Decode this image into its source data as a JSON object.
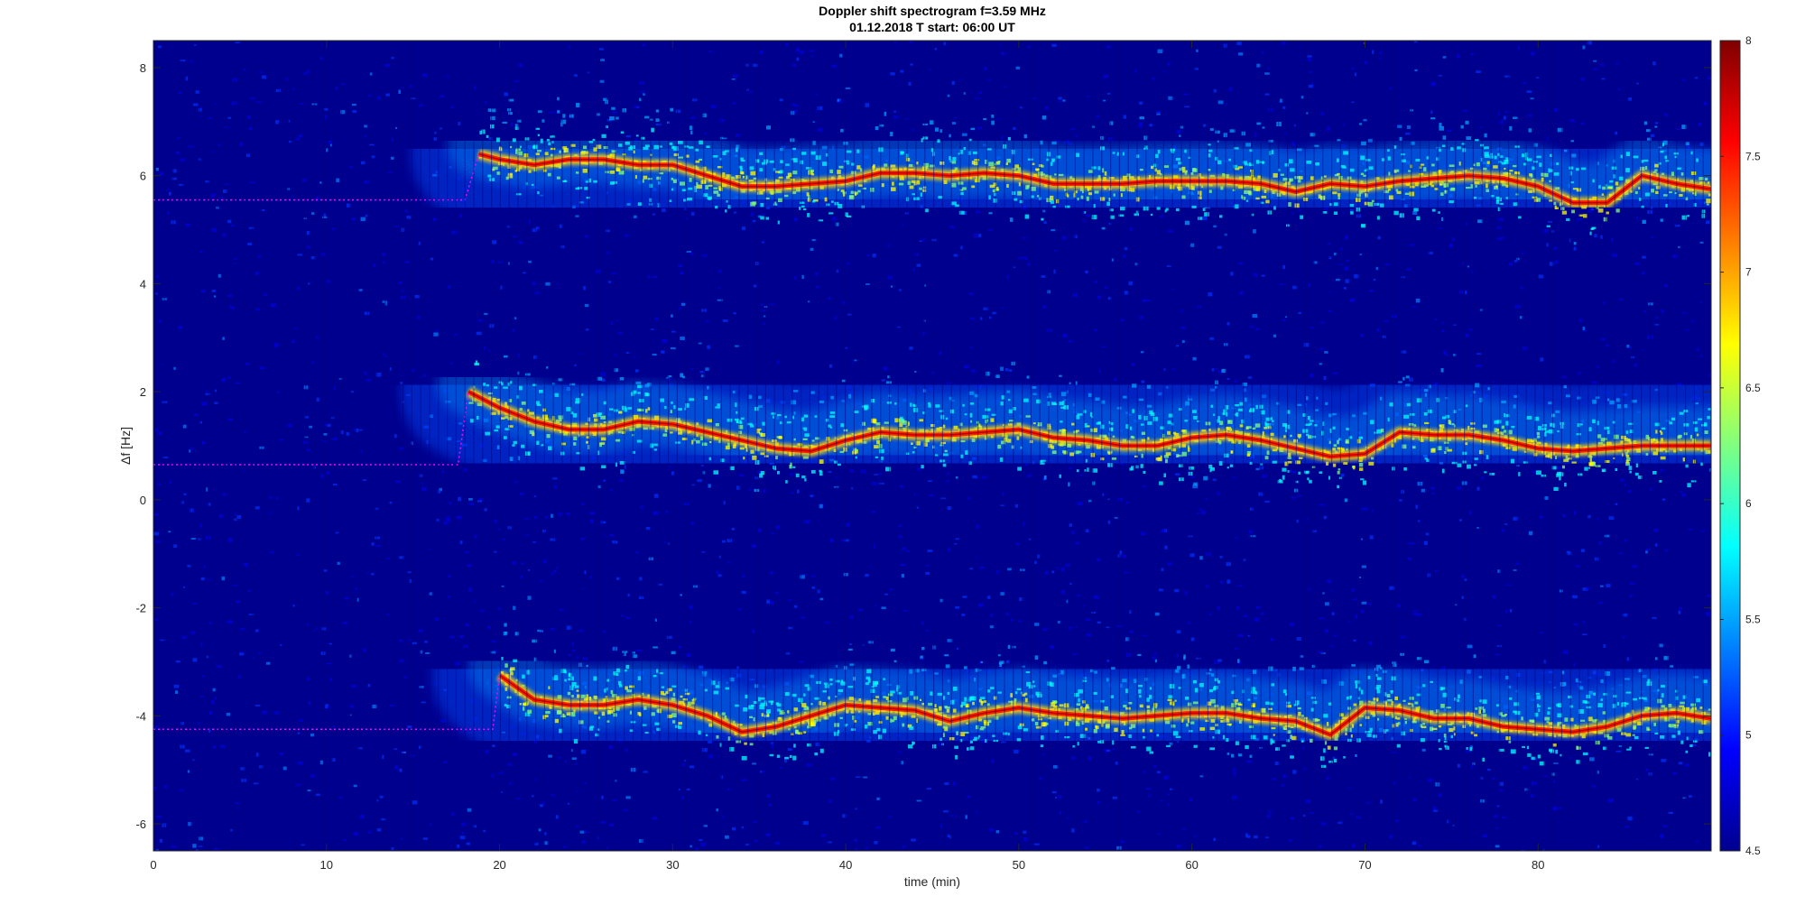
{
  "chart_data": {
    "type": "heatmap",
    "title": "Doppler shift spectrogram f=3.59 MHz",
    "subtitle": "01.12.2018    T start: 06:00 UT",
    "xlabel": "time (min)",
    "ylabel": "Δf [Hz]",
    "xlim": [
      0,
      90
    ],
    "ylim": [
      -6.5,
      8.5
    ],
    "xticks": [
      0,
      10,
      20,
      30,
      40,
      50,
      60,
      70,
      80
    ],
    "yticks": [
      -6,
      -4,
      -2,
      0,
      2,
      4,
      6,
      8
    ],
    "colorbar": {
      "colormap": "jet",
      "range": [
        4.5,
        8
      ],
      "ticks": [
        4.5,
        5,
        5.5,
        6,
        6.5,
        7,
        7.5,
        8
      ]
    },
    "background_color": "#00008f",
    "traces": [
      {
        "ridge_x": [
          18.8,
          20,
          22,
          24,
          26,
          28,
          30,
          32,
          34,
          36,
          38,
          40,
          42,
          44,
          46,
          48,
          50,
          52,
          54,
          56,
          58,
          60,
          62,
          64,
          66,
          68,
          70,
          72,
          74,
          76,
          78,
          80,
          82,
          84,
          86,
          88,
          90
        ],
        "ridge_y": [
          6.4,
          6.3,
          6.2,
          6.3,
          6.3,
          6.2,
          6.2,
          6.0,
          5.8,
          5.8,
          5.85,
          5.9,
          6.05,
          6.05,
          6.0,
          6.05,
          6.0,
          5.85,
          5.85,
          5.85,
          5.9,
          5.9,
          5.9,
          5.85,
          5.7,
          5.85,
          5.8,
          5.9,
          5.95,
          6.0,
          5.95,
          5.8,
          5.5,
          5.5,
          6.0,
          5.85,
          5.75
        ],
        "baseline_y": 5.55,
        "baseline_end": 18.0
      },
      {
        "ridge_x": [
          18.2,
          20,
          22,
          24,
          26,
          28,
          30,
          32,
          34,
          36,
          38,
          40,
          42,
          44,
          46,
          48,
          50,
          52,
          54,
          56,
          58,
          60,
          62,
          64,
          66,
          68,
          70,
          72,
          74,
          76,
          78,
          80,
          82,
          84,
          86,
          88,
          90
        ],
        "ridge_y": [
          2.0,
          1.7,
          1.45,
          1.3,
          1.3,
          1.45,
          1.4,
          1.25,
          1.1,
          0.95,
          0.9,
          1.1,
          1.25,
          1.2,
          1.2,
          1.25,
          1.3,
          1.15,
          1.1,
          1.0,
          1.0,
          1.15,
          1.2,
          1.1,
          0.95,
          0.8,
          0.85,
          1.25,
          1.2,
          1.2,
          1.1,
          0.95,
          0.9,
          0.95,
          1.0,
          1.0,
          1.0
        ],
        "baseline_y": 0.65,
        "baseline_end": 17.6
      },
      {
        "ridge_x": [
          20.0,
          22,
          24,
          26,
          28,
          30,
          32,
          34,
          36,
          38,
          40,
          42,
          44,
          46,
          48,
          50,
          52,
          54,
          56,
          58,
          60,
          62,
          64,
          66,
          68,
          70,
          72,
          74,
          76,
          78,
          80,
          82,
          84,
          86,
          88,
          90
        ],
        "ridge_y": [
          -3.25,
          -3.7,
          -3.8,
          -3.8,
          -3.7,
          -3.8,
          -4.0,
          -4.3,
          -4.2,
          -4.0,
          -3.8,
          -3.85,
          -3.9,
          -4.1,
          -3.95,
          -3.85,
          -3.95,
          -4.0,
          -4.05,
          -4.0,
          -3.95,
          -3.95,
          -4.05,
          -4.1,
          -4.35,
          -3.85,
          -3.9,
          -4.05,
          -4.05,
          -4.2,
          -4.25,
          -4.3,
          -4.2,
          -4.0,
          -3.95,
          -4.05
        ],
        "baseline_y": -4.25,
        "baseline_end": 19.6
      }
    ]
  }
}
